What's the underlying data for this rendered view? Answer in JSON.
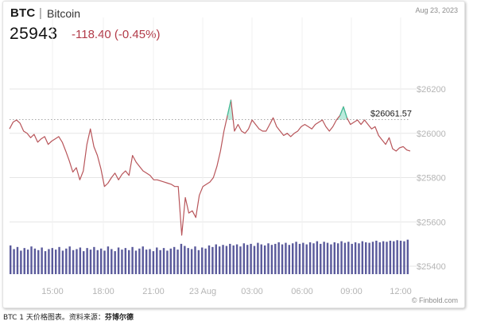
{
  "header": {
    "ticker": "BTC",
    "separator": "|",
    "name": "Bitcoin",
    "date": "Aug 23, 2023",
    "price": "25943",
    "change": "-118.40 (-0.45%)"
  },
  "watermark": "© Finbold.com",
  "caption": {
    "text": "BTC 1 天价格图表。资料来源：",
    "source": "芬博尔德"
  },
  "colors": {
    "line_down": "#b8555a",
    "area_up": "#3cc69d",
    "volume": "#3d3d8a",
    "grid": "#e6e6e6",
    "axis_text": "#b5b5b5",
    "change_text": "#b23a48"
  },
  "chart_data": {
    "type": "line",
    "title": "",
    "xlabel": "",
    "ylabel": "",
    "ylim": [
      25400,
      26350
    ],
    "yticks": [
      {
        "value": 26200,
        "label": "$26200"
      },
      {
        "value": 26000,
        "label": "$26000"
      },
      {
        "value": 25800,
        "label": "$25800"
      },
      {
        "value": 25600,
        "label": "$25600"
      },
      {
        "value": 25400,
        "label": "$25400"
      }
    ],
    "xticks": [
      "15:00",
      "18:00",
      "21:00",
      "23 Aug",
      "03:00",
      "06:00",
      "09:00",
      "12:00"
    ],
    "reference": {
      "value": 26061.57,
      "label": "$26061.57"
    },
    "series": [
      {
        "values": [
          26020,
          26050,
          26060,
          26045,
          26010,
          26000,
          25980,
          25995,
          25960,
          25975,
          25985,
          25950,
          25965,
          25975,
          25985,
          25960,
          25920,
          25875,
          25825,
          25845,
          25790,
          25830,
          25950,
          26020,
          25940,
          25900,
          25840,
          25760,
          25775,
          25800,
          25820,
          25790,
          25815,
          25830,
          25810,
          25900,
          25870,
          25850,
          25830,
          25820,
          25810,
          25790,
          25790,
          25785,
          25780,
          25775,
          25770,
          25760,
          25760,
          25540,
          25710,
          25640,
          25650,
          25620,
          25720,
          25760,
          25770,
          25780,
          25800,
          25850,
          25920,
          26010,
          26080,
          26150,
          26010,
          26040,
          26010,
          26000,
          26020,
          26060,
          26040,
          26020,
          26010,
          26010,
          26040,
          26070,
          26030,
          26010,
          25990,
          26000,
          25985,
          26000,
          26010,
          26030,
          26040,
          26030,
          26020,
          26040,
          26050,
          26060,
          26030,
          26010,
          26030,
          26060,
          26080,
          26120,
          26070,
          26040,
          26050,
          26060,
          26040,
          26060,
          26040,
          26020,
          26030,
          25990,
          25970,
          25950,
          25980,
          25930,
          25920,
          25935,
          25940,
          25925,
          25920
        ]
      }
    ],
    "volume": {
      "type": "bar",
      "values": [
        55,
        48,
        52,
        45,
        50,
        47,
        53,
        49,
        46,
        51,
        44,
        48,
        50,
        47,
        52,
        45,
        49,
        53,
        46,
        48,
        51,
        44,
        50,
        47,
        52,
        46,
        49,
        45,
        53,
        48,
        44,
        51,
        47,
        50,
        46,
        52,
        45,
        49,
        53,
        47,
        48,
        44,
        51,
        46,
        50,
        45,
        49,
        52,
        47,
        58,
        54,
        50,
        48,
        53,
        46,
        51,
        49,
        55,
        52,
        57,
        53,
        56,
        54,
        58,
        55,
        57,
        53,
        59,
        56,
        58,
        54,
        60,
        57,
        55,
        59,
        56,
        58,
        61,
        57,
        60,
        56,
        59,
        62,
        58,
        60,
        57,
        61,
        59,
        63,
        58,
        62,
        60,
        57,
        61,
        59,
        63,
        60,
        62,
        58,
        61,
        59,
        63,
        61,
        60,
        62,
        64,
        61,
        63,
        62,
        64,
        63,
        65,
        64,
        63,
        66
      ]
    }
  }
}
